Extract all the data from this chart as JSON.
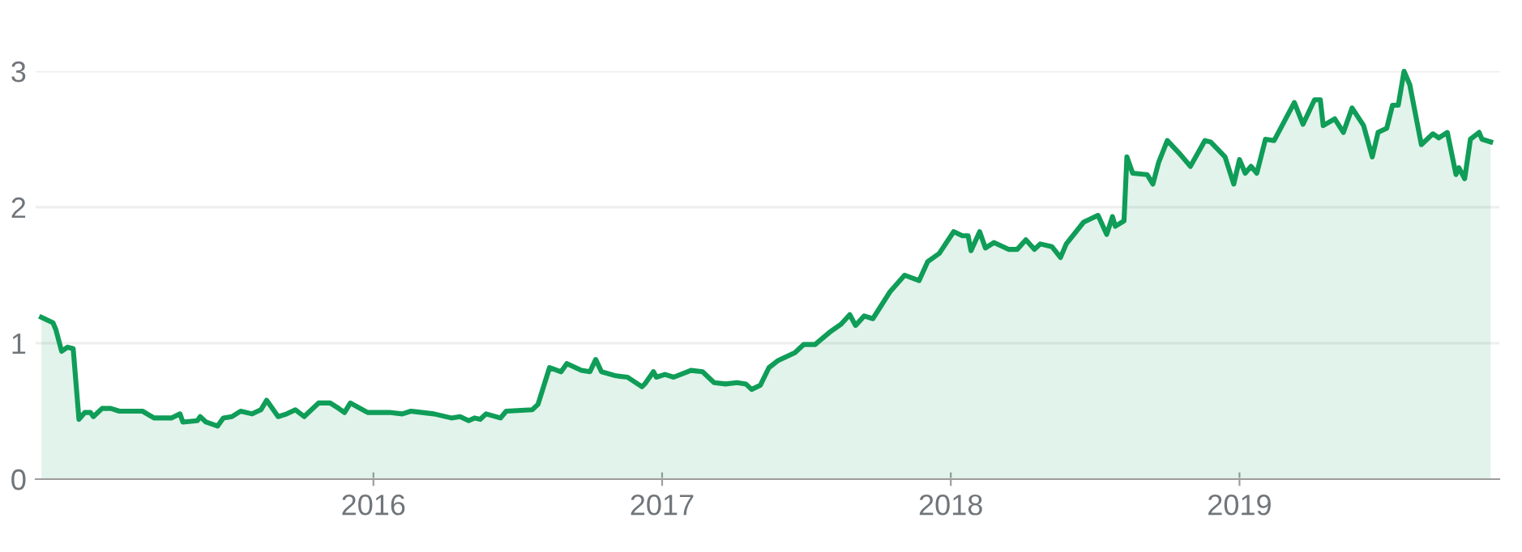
{
  "chart_data": {
    "type": "area",
    "x": [
      2014.85,
      2014.89,
      2014.9,
      2014.92,
      2014.94,
      2014.96,
      2014.98,
      2015.0,
      2015.02,
      2015.03,
      2015.06,
      2015.09,
      2015.12,
      2015.2,
      2015.24,
      2015.3,
      2015.33,
      2015.34,
      2015.39,
      2015.4,
      2015.42,
      2015.46,
      2015.48,
      2015.51,
      2015.54,
      2015.58,
      2015.61,
      2015.63,
      2015.67,
      2015.7,
      2015.73,
      2015.76,
      2015.81,
      2015.85,
      2015.88,
      2015.9,
      2015.92,
      2015.98,
      2016.06,
      2016.1,
      2016.13,
      2016.21,
      2016.27,
      2016.3,
      2016.33,
      2016.35,
      2016.37,
      2016.39,
      2016.44,
      2016.46,
      2016.55,
      2016.57,
      2016.61,
      2016.65,
      2016.67,
      2016.72,
      2016.75,
      2016.77,
      2016.79,
      2016.84,
      2016.88,
      2016.93,
      2016.94,
      2016.97,
      2016.98,
      2017.01,
      2017.04,
      2017.1,
      2017.14,
      2017.18,
      2017.22,
      2017.26,
      2017.29,
      2017.31,
      2017.34,
      2017.37,
      2017.4,
      2017.46,
      2017.49,
      2017.53,
      2017.58,
      2017.62,
      2017.65,
      2017.67,
      2017.7,
      2017.73,
      2017.79,
      2017.84,
      2017.89,
      2017.92,
      2017.96,
      2018.01,
      2018.04,
      2018.06,
      2018.07,
      2018.1,
      2018.12,
      2018.15,
      2018.2,
      2018.23,
      2018.26,
      2018.29,
      2018.31,
      2018.35,
      2018.38,
      2018.4,
      2018.46,
      2018.51,
      2018.54,
      2018.56,
      2018.57,
      2018.6,
      2018.61,
      2018.63,
      2018.68,
      2018.7,
      2018.72,
      2018.75,
      2018.79,
      2018.83,
      2018.88,
      2018.9,
      2018.95,
      2018.98,
      2019.0,
      2019.02,
      2019.04,
      2019.06,
      2019.09,
      2019.12,
      2019.19,
      2019.22,
      2019.26,
      2019.28,
      2019.29,
      2019.33,
      2019.36,
      2019.39,
      2019.43,
      2019.46,
      2019.48,
      2019.51,
      2019.53,
      2019.55,
      2019.57,
      2019.59,
      2019.63,
      2019.67,
      2019.69,
      2019.72,
      2019.75,
      2019.76,
      2019.78,
      2019.8,
      2019.83,
      2019.84,
      2019.87
    ],
    "series": [
      {
        "color": "#0f9d58",
        "values": [
          1.19,
          1.15,
          1.1,
          0.94,
          0.97,
          0.96,
          0.44,
          0.49,
          0.49,
          0.46,
          0.52,
          0.52,
          0.5,
          0.5,
          0.45,
          0.45,
          0.48,
          0.42,
          0.43,
          0.46,
          0.42,
          0.39,
          0.45,
          0.46,
          0.5,
          0.48,
          0.51,
          0.58,
          0.46,
          0.48,
          0.51,
          0.46,
          0.56,
          0.56,
          0.52,
          0.49,
          0.56,
          0.49,
          0.49,
          0.48,
          0.5,
          0.48,
          0.45,
          0.46,
          0.43,
          0.45,
          0.44,
          0.48,
          0.45,
          0.5,
          0.51,
          0.55,
          0.82,
          0.79,
          0.85,
          0.8,
          0.79,
          0.88,
          0.79,
          0.76,
          0.75,
          0.68,
          0.7,
          0.79,
          0.75,
          0.77,
          0.75,
          0.8,
          0.79,
          0.71,
          0.7,
          0.71,
          0.7,
          0.66,
          0.69,
          0.82,
          0.87,
          0.93,
          0.99,
          0.99,
          1.08,
          1.14,
          1.21,
          1.13,
          1.2,
          1.18,
          1.38,
          1.5,
          1.46,
          1.6,
          1.66,
          1.82,
          1.79,
          1.79,
          1.68,
          1.82,
          1.7,
          1.74,
          1.69,
          1.69,
          1.76,
          1.69,
          1.73,
          1.71,
          1.63,
          1.73,
          1.89,
          1.94,
          1.8,
          1.93,
          1.86,
          1.9,
          2.37,
          2.25,
          2.24,
          2.17,
          2.33,
          2.49,
          2.4,
          2.3,
          2.49,
          2.48,
          2.37,
          2.17,
          2.35,
          2.25,
          2.3,
          2.25,
          2.5,
          2.49,
          2.77,
          2.61,
          2.79,
          2.79,
          2.6,
          2.65,
          2.55,
          2.73,
          2.6,
          2.37,
          2.55,
          2.58,
          2.75,
          2.75,
          3.0,
          2.9,
          2.46,
          2.54,
          2.51,
          2.55,
          2.24,
          2.29,
          2.21,
          2.5,
          2.55,
          2.5,
          2.48
        ]
      }
    ],
    "xlim": [
      2014.83,
      2019.9
    ],
    "ylim": [
      0,
      3
    ],
    "xticks": [
      2016,
      2017,
      2018,
      2019
    ],
    "yticks": [
      0,
      1,
      2,
      3
    ],
    "grid": "y"
  }
}
